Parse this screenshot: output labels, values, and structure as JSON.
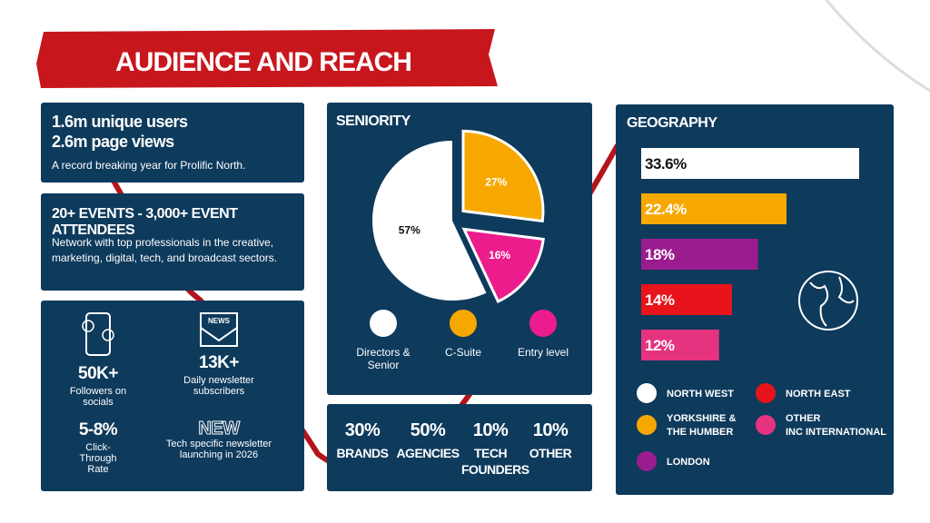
{
  "title": "AUDIENCE AND REACH",
  "reach": {
    "lines": [
      "1.6m unique users",
      "2.6m page views"
    ],
    "text": "A record breaking year for Prolific North."
  },
  "events": {
    "title": "20+ EVENTS - 3,000+ EVENT ATTENDEES",
    "text": "Network with top professionals in the creative, marketing, digital, tech, and broadcast sectors."
  },
  "stats": {
    "icon_text": "NEWS",
    "items": [
      {
        "value": "50K+",
        "label": "Followers on socials"
      },
      {
        "value": "13K+",
        "label": "Daily newsletter subscribers"
      },
      {
        "value": "5-8%",
        "label": "Click-Through Rate"
      },
      {
        "value": "NEW",
        "label": "Tech specific newsletter launching in 2026"
      }
    ]
  },
  "seniority": {
    "title": "SENIORITY",
    "type": "pie",
    "categories": [
      "Directors & Senior",
      "C-Suite",
      "Entry level"
    ],
    "values": [
      57,
      27,
      16
    ],
    "value_labels": [
      "57%",
      "27%",
      "16%"
    ],
    "colors": [
      "#ffffff",
      "#f7a800",
      "#ec1c8c"
    ]
  },
  "audience": [
    {
      "value": "30%",
      "label": "BRANDS"
    },
    {
      "value": "50%",
      "label": "AGENCIES"
    },
    {
      "value": "10%",
      "label": "TECH FOUNDERS"
    },
    {
      "value": "10%",
      "label": "OTHER"
    }
  ],
  "geography": {
    "title": "GEOGRAPHY",
    "type": "bar",
    "categories": [
      "NORTH WEST",
      "YORKSHIRE & THE HUMBER",
      "LONDON",
      "NORTH EAST",
      "OTHER INC INTERNATIONAL"
    ],
    "values": [
      33.6,
      22.4,
      18,
      14,
      12
    ],
    "value_labels": [
      "33.6%",
      "22.4%",
      "18%",
      "14%",
      "12%"
    ],
    "colors": [
      "#ffffff",
      "#f7a800",
      "#9b1c8f",
      "#e8141b",
      "#e6337f"
    ]
  }
}
